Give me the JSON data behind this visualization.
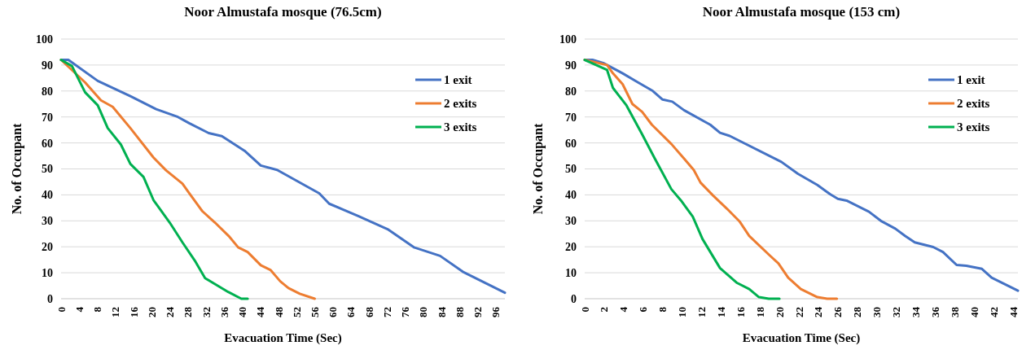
{
  "chart_data": [
    {
      "type": "line",
      "title": "Noor Almustafa mosque (76.5cm)",
      "xlabel": "Evacuation Time (Sec)",
      "ylabel": "No. of Occupant",
      "xlim": [
        0,
        98
      ],
      "xticks": [
        0,
        4,
        8,
        12,
        16,
        20,
        24,
        28,
        32,
        36,
        40,
        44,
        48,
        52,
        56,
        60,
        64,
        68,
        72,
        76,
        80,
        84,
        88,
        92,
        96
      ],
      "ylim": [
        0,
        100
      ],
      "yticks": [
        0,
        10,
        20,
        30,
        40,
        50,
        60,
        70,
        80,
        90,
        100
      ],
      "grid": "y",
      "legend": "top right",
      "marker": "none",
      "line_style": "solid",
      "series": [
        {
          "name": "1 exit",
          "color": "#4472c4",
          "x": [
            0,
            1.6,
            8.1,
            15.3,
            21,
            25.8,
            28.3,
            32.6,
            35.5,
            40.5,
            44.1,
            47.7,
            57,
            59.2,
            65.7,
            72.1,
            77.9,
            83.7,
            88.7,
            98
          ],
          "values": [
            92,
            92,
            83.9,
            78,
            73,
            70,
            67.6,
            63.8,
            62.6,
            57,
            51.3,
            49.6,
            40.6,
            36.6,
            31.8,
            26.8,
            19.8,
            16.5,
            10.4,
            2.3
          ]
        },
        {
          "name": "2 exits",
          "color": "#ed7d31",
          "x": [
            0,
            5.3,
            8.8,
            11.4,
            15.3,
            20.4,
            23.2,
            26.8,
            28.3,
            31.2,
            34,
            37,
            39.1,
            41.2,
            44.1,
            46.3,
            48.4,
            50.2,
            52.7,
            56
          ],
          "values": [
            92,
            83.3,
            76.4,
            73.9,
            65.7,
            54.4,
            49.4,
            44.3,
            40.6,
            33.7,
            29.3,
            24.2,
            19.8,
            18,
            12.9,
            11,
            6.7,
            4.1,
            1.9,
            0
          ]
        },
        {
          "name": "3 exits",
          "color": "#00b050",
          "x": [
            0,
            2.4,
            5.3,
            8.1,
            10.3,
            13.2,
            15.3,
            18.2,
            20.4,
            24,
            26.8,
            29.7,
            31.8,
            36.9,
            39.8,
            41.2
          ],
          "values": [
            92,
            89.6,
            79.5,
            74.5,
            65.7,
            59.4,
            51.9,
            46.9,
            38,
            29.3,
            21.7,
            14.2,
            7.9,
            2.6,
            0,
            0
          ]
        }
      ]
    },
    {
      "type": "line",
      "title": "Noor Almustafa mosque (153 cm)",
      "xlabel": "Evacuation Time (Sec)",
      "ylabel": "No. of Occupant",
      "xlim": [
        0,
        44.5
      ],
      "xticks": [
        0,
        2,
        4,
        6,
        8,
        10,
        12,
        14,
        16,
        18,
        20,
        22,
        24,
        26,
        28,
        30,
        32,
        34,
        36,
        38,
        40,
        42,
        44
      ],
      "ylim": [
        0,
        100
      ],
      "yticks": [
        0,
        10,
        20,
        30,
        40,
        50,
        60,
        70,
        80,
        90,
        100
      ],
      "grid": "y",
      "legend": "top right",
      "marker": "none",
      "line_style": "solid",
      "series": [
        {
          "name": "1 exit",
          "color": "#4472c4",
          "x": [
            0,
            0.8,
            1.9,
            3.9,
            5.3,
            7,
            8,
            9,
            10.2,
            12.9,
            13.9,
            14.9,
            20.2,
            21.9,
            23.9,
            25.2,
            26,
            26.9,
            29.2,
            30.5,
            31.9,
            32.9,
            33.9,
            35.8,
            36.8,
            38.2,
            39.2,
            40.8,
            41.8,
            44.5
          ],
          "values": [
            92,
            92,
            90.8,
            86.8,
            83.7,
            80,
            76.7,
            75.9,
            72.6,
            67,
            63.9,
            62.7,
            52.7,
            48.1,
            43.8,
            40.3,
            38.5,
            37.8,
            33.5,
            29.8,
            27,
            24.2,
            21.7,
            19.9,
            18,
            13,
            12.7,
            11.5,
            8.1,
            3.1
          ]
        },
        {
          "name": "2 exits",
          "color": "#ed7d31",
          "x": [
            0,
            2.3,
            2.9,
            3.9,
            4.9,
            5.9,
            6.9,
            8.9,
            10.2,
            11.2,
            11.9,
            13.2,
            14.6,
            15.9,
            16.9,
            19,
            19.9,
            20.9,
            22.2,
            23.9,
            24.9,
            25.9
          ],
          "values": [
            92,
            90,
            86.8,
            82.6,
            75,
            72,
            67,
            59.6,
            54,
            49.6,
            44.7,
            39.7,
            34.7,
            29.8,
            24.2,
            16.7,
            13.6,
            8.1,
            3.7,
            0.6,
            0,
            0
          ]
        },
        {
          "name": "3 exits",
          "color": "#00b050",
          "x": [
            0,
            2.3,
            2.9,
            4.3,
            5.9,
            7.2,
            8.9,
            9.9,
            11.1,
            12.1,
            13.9,
            15.6,
            16.9,
            17.9,
            18.9,
            20
          ],
          "values": [
            92,
            88.1,
            81.2,
            74.4,
            63.3,
            54,
            42.2,
            37.8,
            31.6,
            23,
            11.8,
            6.2,
            3.7,
            0.6,
            0,
            0
          ]
        }
      ]
    }
  ]
}
